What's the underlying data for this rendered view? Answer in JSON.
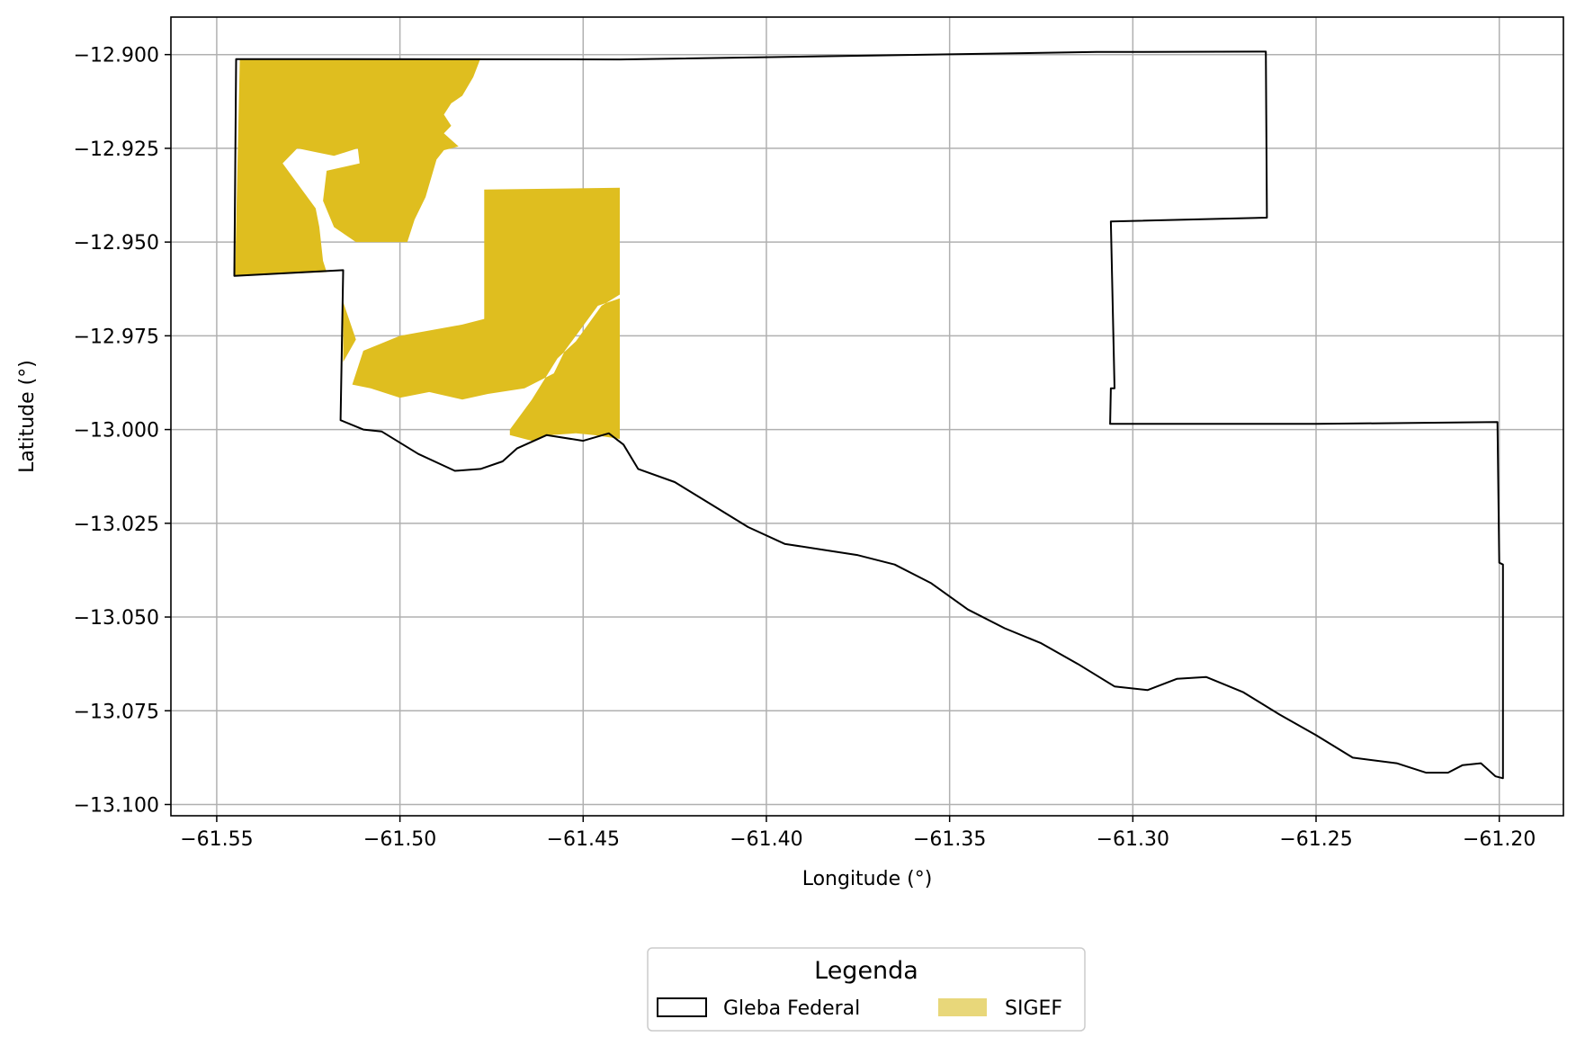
{
  "chart_data": {
    "type": "map",
    "title": "",
    "xlabel": "Longitude (°)",
    "ylabel": "Latitude (°)",
    "xlim": [
      -61.5625,
      -61.1825
    ],
    "ylim": [
      -13.103,
      -12.89
    ],
    "grid": true,
    "x_ticks": [
      -61.55,
      -61.5,
      -61.45,
      -61.4,
      -61.35,
      -61.3,
      -61.25,
      -61.2
    ],
    "y_ticks": [
      -12.9,
      -12.925,
      -12.95,
      -12.975,
      -13.0,
      -13.025,
      -13.05,
      -13.075,
      -13.1
    ],
    "x_tick_labels": [
      "−61.55",
      "−61.50",
      "−61.45",
      "−61.40",
      "−61.35",
      "−61.30",
      "−61.25",
      "−61.20"
    ],
    "y_tick_labels": [
      "−12.900",
      "−12.925",
      "−12.950",
      "−12.975",
      "−13.000",
      "−13.025",
      "−13.050",
      "−13.075",
      "−13.100"
    ],
    "colors": {
      "gleba_outline": "#000000",
      "sigef_fill": "#dfbe1f",
      "sigef_legend": "#e8d77a",
      "grid": "#b0b0b0"
    },
    "legend": {
      "title": "Legenda",
      "placement": "bottom-center",
      "entries": [
        {
          "label": "Gleba Federal",
          "style": "outline"
        },
        {
          "label": "SIGEF",
          "style": "fill"
        }
      ]
    },
    "layers": {
      "gleba_federal": [
        [
          -61.5447,
          -12.9012
        ],
        [
          -61.44,
          -12.9013
        ],
        [
          -61.31,
          -12.8993
        ],
        [
          -61.2637,
          -12.8992
        ],
        [
          -61.2634,
          -12.9435
        ],
        [
          -61.306,
          -12.9445
        ],
        [
          -61.305,
          -12.989
        ],
        [
          -61.306,
          -12.989
        ],
        [
          -61.3062,
          -12.9985
        ],
        [
          -61.25,
          -12.9985
        ],
        [
          -61.2005,
          -12.998
        ],
        [
          -61.2,
          -13.0355
        ],
        [
          -61.199,
          -13.036
        ],
        [
          -61.199,
          -13.093
        ],
        [
          -61.201,
          -13.0925
        ],
        [
          -61.205,
          -13.089
        ],
        [
          -61.21,
          -13.0895
        ],
        [
          -61.214,
          -13.0915
        ],
        [
          -61.22,
          -13.0915
        ],
        [
          -61.228,
          -13.089
        ],
        [
          -61.24,
          -13.0875
        ],
        [
          -61.25,
          -13.0815
        ],
        [
          -61.26,
          -13.076
        ],
        [
          -61.27,
          -13.07
        ],
        [
          -61.28,
          -13.066
        ],
        [
          -61.288,
          -13.0665
        ],
        [
          -61.296,
          -13.0695
        ],
        [
          -61.305,
          -13.0685
        ],
        [
          -61.315,
          -13.0625
        ],
        [
          -61.325,
          -13.057
        ],
        [
          -61.335,
          -13.053
        ],
        [
          -61.345,
          -13.048
        ],
        [
          -61.355,
          -13.041
        ],
        [
          -61.365,
          -13.036
        ],
        [
          -61.375,
          -13.0335
        ],
        [
          -61.385,
          -13.032
        ],
        [
          -61.395,
          -13.0305
        ],
        [
          -61.405,
          -13.026
        ],
        [
          -61.415,
          -13.02
        ],
        [
          -61.425,
          -13.014
        ],
        [
          -61.435,
          -13.0105
        ],
        [
          -61.439,
          -13.004
        ],
        [
          -61.443,
          -13.001
        ],
        [
          -61.45,
          -13.003
        ],
        [
          -61.46,
          -13.0015
        ],
        [
          -61.468,
          -13.005
        ],
        [
          -61.472,
          -13.0085
        ],
        [
          -61.478,
          -13.0105
        ],
        [
          -61.485,
          -13.011
        ],
        [
          -61.495,
          -13.0065
        ],
        [
          -61.5,
          -13.0035
        ],
        [
          -61.505,
          -13.0005
        ],
        [
          -61.51,
          -13.0
        ],
        [
          -61.5162,
          -12.9975
        ],
        [
          -61.5155,
          -12.9575
        ],
        [
          -61.5452,
          -12.959
        ],
        [
          -61.5447,
          -12.9012
        ]
      ],
      "sigef": [
        [
          [
            -61.5437,
            -12.9012
          ],
          [
            -61.478,
            -12.901
          ],
          [
            -61.48,
            -12.906
          ],
          [
            -61.483,
            -12.911
          ],
          [
            -61.486,
            -12.913
          ],
          [
            -61.488,
            -12.916
          ],
          [
            -61.486,
            -12.919
          ],
          [
            -61.488,
            -12.921
          ],
          [
            -61.484,
            -12.9245
          ],
          [
            -61.488,
            -12.9255
          ],
          [
            -61.49,
            -12.928
          ],
          [
            -61.493,
            -12.938
          ],
          [
            -61.496,
            -12.944
          ],
          [
            -61.498,
            -12.95
          ],
          [
            -61.512,
            -12.95
          ],
          [
            -61.518,
            -12.946
          ],
          [
            -61.521,
            -12.939
          ],
          [
            -61.52,
            -12.931
          ],
          [
            -61.511,
            -12.929
          ],
          [
            -61.5115,
            -12.925
          ],
          [
            -61.518,
            -12.927
          ],
          [
            -61.523,
            -12.926
          ],
          [
            -61.528,
            -12.925
          ],
          [
            -61.532,
            -12.929
          ],
          [
            -61.523,
            -12.941
          ],
          [
            -61.522,
            -12.946
          ],
          [
            -61.521,
            -12.955
          ],
          [
            -61.52,
            -12.958
          ],
          [
            -61.545,
            -12.959
          ],
          [
            -61.5437,
            -12.9012
          ]
        ],
        [
          [
            -61.477,
            -12.936
          ],
          [
            -61.44,
            -12.9355
          ],
          [
            -61.44,
            -12.964
          ],
          [
            -61.445,
            -12.967
          ],
          [
            -61.452,
            -12.9765
          ],
          [
            -61.457,
            -12.981
          ],
          [
            -61.464,
            -12.992
          ],
          [
            -61.47,
            -13.0
          ],
          [
            -61.47,
            -13.0015
          ],
          [
            -61.464,
            -13.003
          ],
          [
            -61.459,
            -13.0015
          ],
          [
            -61.452,
            -13.001
          ],
          [
            -61.447,
            -13.0015
          ],
          [
            -61.44,
            -13.0025
          ],
          [
            -61.44,
            -12.965
          ],
          [
            -61.446,
            -12.967
          ],
          [
            -61.455,
            -12.979
          ],
          [
            -61.458,
            -12.985
          ],
          [
            -61.466,
            -12.989
          ],
          [
            -61.476,
            -12.9905
          ],
          [
            -61.483,
            -12.992
          ],
          [
            -61.492,
            -12.99
          ],
          [
            -61.5,
            -12.9915
          ],
          [
            -61.508,
            -12.989
          ],
          [
            -61.513,
            -12.988
          ],
          [
            -61.512,
            -12.985
          ],
          [
            -61.51,
            -12.979
          ],
          [
            -61.505,
            -12.977
          ],
          [
            -61.5,
            -12.975
          ],
          [
            -61.483,
            -12.972
          ],
          [
            -61.477,
            -12.9705
          ],
          [
            -61.477,
            -12.936
          ]
        ],
        [
          [
            -61.5155,
            -12.966
          ],
          [
            -61.512,
            -12.976
          ],
          [
            -61.5155,
            -12.982
          ],
          [
            -61.5155,
            -12.966
          ]
        ]
      ]
    }
  }
}
